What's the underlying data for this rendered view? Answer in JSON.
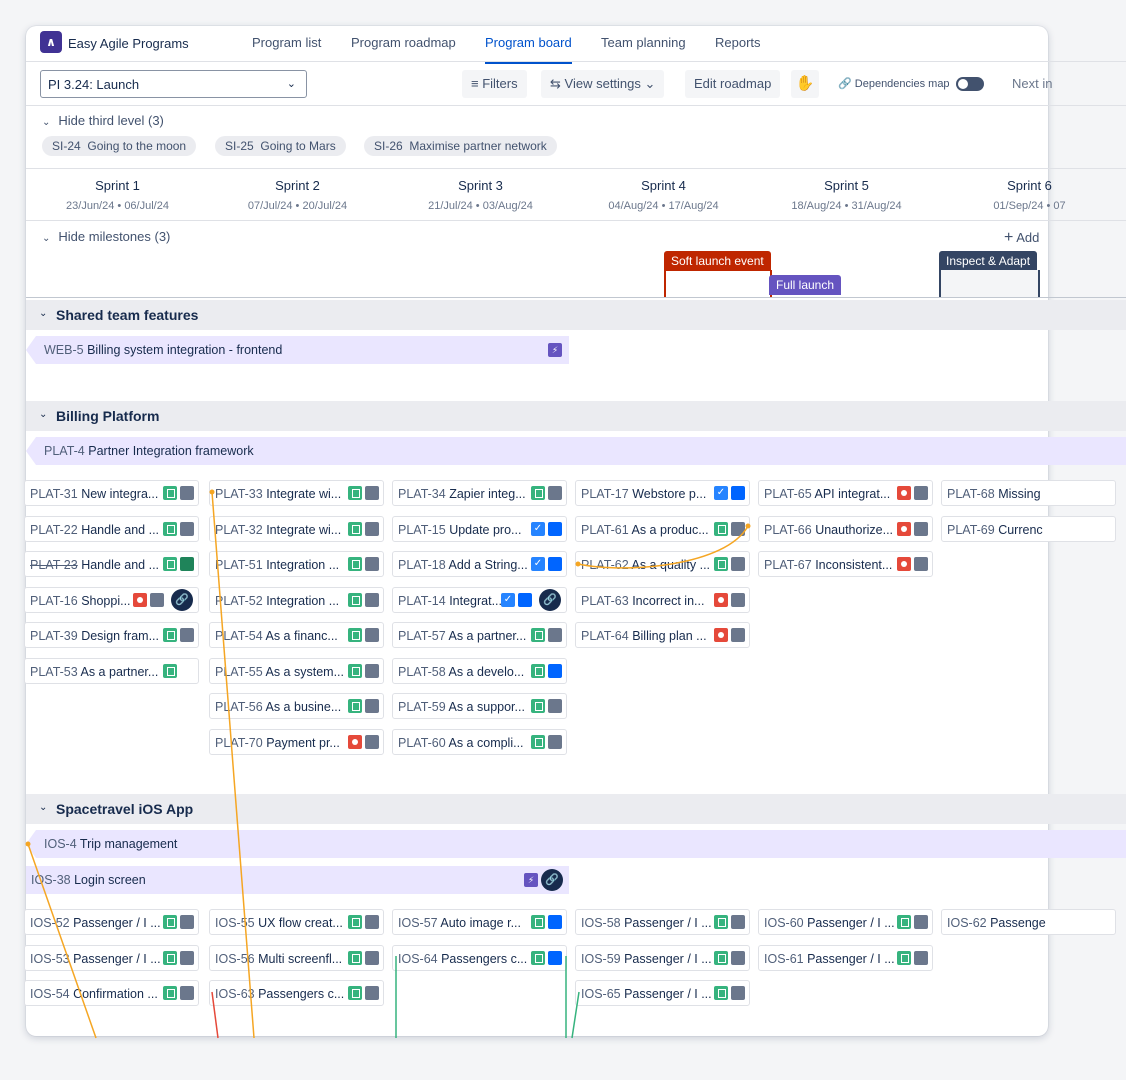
{
  "app": {
    "title": "Easy Agile Programs",
    "logo": "easy-agile-logo"
  },
  "nav": [
    "Program list",
    "Program roadmap",
    "Program board",
    "Team planning",
    "Reports"
  ],
  "active_nav": "Program board",
  "toolbar": {
    "pi": "PI 3.24: Launch",
    "filters": "Filters",
    "view_settings": "View settings",
    "edit_roadmap": "Edit roadmap",
    "dependencies": "Dependencies map",
    "next": "Next in"
  },
  "third_level": {
    "label": "Hide third level (3)",
    "chips": [
      {
        "key": "SI-24",
        "title": "Going to the moon"
      },
      {
        "key": "SI-25",
        "title": "Going to Mars"
      },
      {
        "key": "SI-26",
        "title": "Maximise partner network"
      }
    ]
  },
  "sprints": [
    {
      "name": "Sprint 1",
      "dates": "23/Jun/24 • 06/Jul/24"
    },
    {
      "name": "Sprint 2",
      "dates": "07/Jul/24 • 20/Jul/24"
    },
    {
      "name": "Sprint 3",
      "dates": "21/Jul/24 • 03/Aug/24"
    },
    {
      "name": "Sprint 4",
      "dates": "04/Aug/24 • 17/Aug/24"
    },
    {
      "name": "Sprint 5",
      "dates": "18/Aug/24 • 31/Aug/24"
    },
    {
      "name": "Sprint 6",
      "dates": "01/Sep/24 • 07"
    }
  ],
  "milestones": {
    "label": "Hide milestones (3)",
    "add": "Add",
    "items": [
      {
        "name": "Soft launch event",
        "color": "#bf2600"
      },
      {
        "name": "Full launch",
        "color": "#6554c0"
      },
      {
        "name": "Inspect & Adapt",
        "color": "#344563"
      }
    ]
  },
  "sections": {
    "shared": {
      "title": "Shared team features",
      "feature": {
        "key": "WEB-5",
        "title": "Billing system integration - frontend"
      }
    },
    "billing": {
      "title": "Billing Platform",
      "feature": {
        "key": "PLAT-4",
        "title": "Partner Integration framework"
      },
      "cards": [
        {
          "key": "PLAT-31",
          "title": "New integra...",
          "col": 0,
          "row": 0,
          "icons": [
            "st",
            "gr"
          ]
        },
        {
          "key": "PLAT-22",
          "title": "Handle and ...",
          "col": 0,
          "row": 1,
          "icons": [
            "st",
            "gr"
          ]
        },
        {
          "key": "PLAT-23",
          "title": "Handle and ...",
          "col": 0,
          "row": 2,
          "icons": [
            "st",
            "dg"
          ],
          "done": true
        },
        {
          "key": "PLAT-16",
          "title": "Shoppi...",
          "col": 0,
          "row": 3,
          "icons": [
            "bg",
            "gr"
          ],
          "link": true
        },
        {
          "key": "PLAT-39",
          "title": "Design fram...",
          "col": 0,
          "row": 4,
          "icons": [
            "st",
            "gr"
          ]
        },
        {
          "key": "PLAT-53",
          "title": "As a partner...",
          "col": 0,
          "row": 5,
          "icons": [
            "st"
          ]
        },
        {
          "key": "PLAT-33",
          "title": "Integrate wi...",
          "col": 1,
          "row": 0,
          "icons": [
            "st",
            "gr"
          ]
        },
        {
          "key": "PLAT-32",
          "title": "Integrate wi...",
          "col": 1,
          "row": 1,
          "icons": [
            "st",
            "gr"
          ]
        },
        {
          "key": "PLAT-51",
          "title": "Integration ...",
          "col": 1,
          "row": 2,
          "icons": [
            "st",
            "gr"
          ]
        },
        {
          "key": "PLAT-52",
          "title": "Integration ...",
          "col": 1,
          "row": 3,
          "icons": [
            "st",
            "gr"
          ]
        },
        {
          "key": "PLAT-54",
          "title": "As a financ...",
          "col": 1,
          "row": 4,
          "icons": [
            "st",
            "gr"
          ]
        },
        {
          "key": "PLAT-55",
          "title": "As a system...",
          "col": 1,
          "row": 5,
          "icons": [
            "st",
            "gr"
          ]
        },
        {
          "key": "PLAT-56",
          "title": "As a busine...",
          "col": 1,
          "row": 6,
          "icons": [
            "st",
            "gr"
          ]
        },
        {
          "key": "PLAT-70",
          "title": "Payment pr...",
          "col": 1,
          "row": 7,
          "icons": [
            "bg",
            "gr"
          ]
        },
        {
          "key": "PLAT-34",
          "title": "Zapier integ...",
          "col": 2,
          "row": 0,
          "icons": [
            "st",
            "gr"
          ]
        },
        {
          "key": "PLAT-15",
          "title": "Update pro...",
          "col": 2,
          "row": 1,
          "icons": [
            "tk",
            "bl"
          ]
        },
        {
          "key": "PLAT-18",
          "title": "Add a String...",
          "col": 2,
          "row": 2,
          "icons": [
            "tk",
            "bl"
          ]
        },
        {
          "key": "PLAT-14",
          "title": "Integrat...",
          "col": 2,
          "row": 3,
          "icons": [
            "tk",
            "bl"
          ],
          "link": true
        },
        {
          "key": "PLAT-57",
          "title": "As a partner...",
          "col": 2,
          "row": 4,
          "icons": [
            "st",
            "gr"
          ]
        },
        {
          "key": "PLAT-58",
          "title": "As a develo...",
          "col": 2,
          "row": 5,
          "icons": [
            "st",
            "bl"
          ]
        },
        {
          "key": "PLAT-59",
          "title": "As a suppor...",
          "col": 2,
          "row": 6,
          "icons": [
            "st",
            "gr"
          ]
        },
        {
          "key": "PLAT-60",
          "title": "As a compli...",
          "col": 2,
          "row": 7,
          "icons": [
            "st",
            "gr"
          ]
        },
        {
          "key": "PLAT-17",
          "title": "Webstore p...",
          "col": 3,
          "row": 0,
          "icons": [
            "tk",
            "bl"
          ]
        },
        {
          "key": "PLAT-61",
          "title": "As a produc...",
          "col": 3,
          "row": 1,
          "icons": [
            "st",
            "gr"
          ]
        },
        {
          "key": "PLAT-62",
          "title": "As a quality ...",
          "col": 3,
          "row": 2,
          "icons": [
            "st",
            "gr"
          ]
        },
        {
          "key": "PLAT-63",
          "title": "Incorrect in...",
          "col": 3,
          "row": 3,
          "icons": [
            "bg",
            "gr"
          ]
        },
        {
          "key": "PLAT-64",
          "title": "Billing plan ...",
          "col": 3,
          "row": 4,
          "icons": [
            "bg",
            "gr"
          ]
        },
        {
          "key": "PLAT-65",
          "title": "API integrat...",
          "col": 4,
          "row": 0,
          "icons": [
            "bg",
            "gr"
          ]
        },
        {
          "key": "PLAT-66",
          "title": "Unauthorize...",
          "col": 4,
          "row": 1,
          "icons": [
            "bg",
            "gr"
          ]
        },
        {
          "key": "PLAT-67",
          "title": "Inconsistent...",
          "col": 4,
          "row": 2,
          "icons": [
            "bg",
            "gr"
          ]
        },
        {
          "key": "PLAT-68",
          "title": "Missing",
          "col": 5,
          "row": 0,
          "icons": []
        },
        {
          "key": "PLAT-69",
          "title": "Currenc",
          "col": 5,
          "row": 1,
          "icons": []
        }
      ]
    },
    "ios": {
      "title": "Spacetravel iOS App",
      "feature": {
        "key": "IOS-4",
        "title": "Trip management"
      },
      "feature2": {
        "key": "IOS-38",
        "title": "Login screen"
      },
      "cards": [
        {
          "key": "IOS-52",
          "title": "Passenger / I ...",
          "col": 0,
          "row": 0,
          "icons": [
            "st",
            "gr"
          ]
        },
        {
          "key": "IOS-53",
          "title": "Passenger / I ...",
          "col": 0,
          "row": 1,
          "icons": [
            "st",
            "gr"
          ]
        },
        {
          "key": "IOS-54",
          "title": "Confirmation ...",
          "col": 0,
          "row": 2,
          "icons": [
            "st",
            "gr"
          ]
        },
        {
          "key": "IOS-55",
          "title": "UX flow creat...",
          "col": 1,
          "row": 0,
          "icons": [
            "st",
            "gr"
          ]
        },
        {
          "key": "IOS-56",
          "title": "Multi screenfl...",
          "col": 1,
          "row": 1,
          "icons": [
            "st",
            "gr"
          ]
        },
        {
          "key": "IOS-63",
          "title": "Passengers c...",
          "col": 1,
          "row": 2,
          "icons": [
            "st",
            "gr"
          ]
        },
        {
          "key": "IOS-57",
          "title": "Auto image r...",
          "col": 2,
          "row": 0,
          "icons": [
            "st",
            "bl"
          ]
        },
        {
          "key": "IOS-64",
          "title": "Passengers c...",
          "col": 2,
          "row": 1,
          "icons": [
            "st",
            "bl"
          ]
        },
        {
          "key": "IOS-58",
          "title": "Passenger / I ...",
          "col": 3,
          "row": 0,
          "icons": [
            "st",
            "gr"
          ]
        },
        {
          "key": "IOS-59",
          "title": "Passenger / I ...",
          "col": 3,
          "row": 1,
          "icons": [
            "st",
            "gr"
          ]
        },
        {
          "key": "IOS-65",
          "title": "Passenger / I ...",
          "col": 3,
          "row": 2,
          "icons": [
            "st",
            "gr"
          ]
        },
        {
          "key": "IOS-60",
          "title": "Passenger / I ...",
          "col": 4,
          "row": 0,
          "icons": [
            "st",
            "gr"
          ]
        },
        {
          "key": "IOS-61",
          "title": "Passenger / I ...",
          "col": 4,
          "row": 1,
          "icons": [
            "st",
            "gr"
          ]
        },
        {
          "key": "IOS-62",
          "title": "Passenge",
          "col": 5,
          "row": 0,
          "icons": []
        }
      ]
    }
  },
  "colors": {
    "active": "#0052cc",
    "dependency_yellow": "#f5a623",
    "dependency_green": "#36b37e",
    "dependency_red": "#e5493a"
  }
}
